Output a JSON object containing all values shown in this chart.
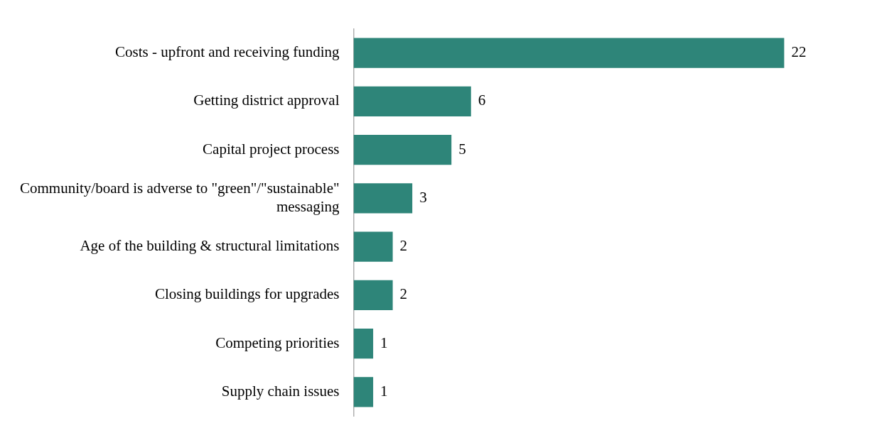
{
  "chart_data": {
    "type": "bar",
    "orientation": "horizontal",
    "categories": [
      "Costs - upfront and receiving funding",
      "Getting district approval",
      "Capital project process",
      "Community/board is adverse to \"green\"/\"sustainable\" messaging",
      "Age of the building & structural limitations",
      "Closing buildings for upgrades",
      "Competing priorities",
      "Supply chain issues"
    ],
    "values": [
      22,
      6,
      5,
      3,
      2,
      2,
      1,
      1
    ],
    "color": "#2e8579",
    "data_labels": true,
    "legend": false,
    "tick_labels": "y"
  }
}
